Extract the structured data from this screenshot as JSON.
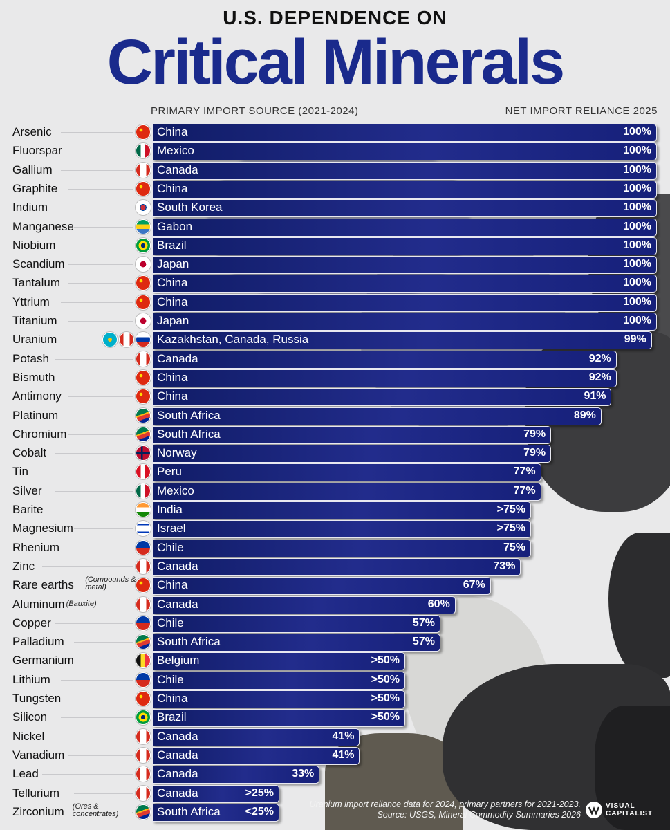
{
  "header": {
    "supertitle": "U.S. DEPENDENCE ON",
    "title": "Critical Minerals",
    "left_column": "PRIMARY IMPORT SOURCE (2021-2024)",
    "right_column": "NET IMPORT RELIANCE 2025"
  },
  "footnote": {
    "line1": "Uranium import reliance data for 2024, primary partners for 2021-2023.",
    "line2": "Source: USGS, Mineral Commodity Summaries 2026"
  },
  "brand": {
    "line1": "VISUAL",
    "line2": "CAPITALIST",
    "icon": "vc-logo-icon"
  },
  "colors": {
    "bar": "#1c2680",
    "title": "#1a2a8c",
    "background": "#e9e9ea"
  },
  "chart_data": {
    "type": "bar",
    "orientation": "horizontal",
    "title": "Critical Minerals",
    "xlim": [
      0,
      100
    ],
    "rows": [
      {
        "mineral": "Arsenic",
        "note": "",
        "source": "China",
        "flags": [
          "China"
        ],
        "value": 100,
        "label": "100%"
      },
      {
        "mineral": "Fluorspar",
        "note": "",
        "source": "Mexico",
        "flags": [
          "Mexico"
        ],
        "value": 100,
        "label": "100%"
      },
      {
        "mineral": "Gallium",
        "note": "",
        "source": "Canada",
        "flags": [
          "Canada"
        ],
        "value": 100,
        "label": "100%"
      },
      {
        "mineral": "Graphite",
        "note": "",
        "source": "China",
        "flags": [
          "China"
        ],
        "value": 100,
        "label": "100%"
      },
      {
        "mineral": "Indium",
        "note": "",
        "source": "South Korea",
        "flags": [
          "South Korea"
        ],
        "value": 100,
        "label": "100%"
      },
      {
        "mineral": "Manganese",
        "note": "",
        "source": "Gabon",
        "flags": [
          "Gabon"
        ],
        "value": 100,
        "label": "100%"
      },
      {
        "mineral": "Niobium",
        "note": "",
        "source": "Brazil",
        "flags": [
          "Brazil"
        ],
        "value": 100,
        "label": "100%"
      },
      {
        "mineral": "Scandium",
        "note": "",
        "source": "Japan",
        "flags": [
          "Japan"
        ],
        "value": 100,
        "label": "100%"
      },
      {
        "mineral": "Tantalum",
        "note": "",
        "source": "China",
        "flags": [
          "China"
        ],
        "value": 100,
        "label": "100%"
      },
      {
        "mineral": "Yttrium",
        "note": "",
        "source": "China",
        "flags": [
          "China"
        ],
        "value": 100,
        "label": "100%"
      },
      {
        "mineral": "Titanium",
        "note": "",
        "source": "Japan",
        "flags": [
          "Japan"
        ],
        "value": 100,
        "label": "100%"
      },
      {
        "mineral": "Uranium",
        "note": "",
        "source": "Kazakhstan, Canada, Russia",
        "flags": [
          "Kazakhstan",
          "Canada",
          "Russia"
        ],
        "value": 99,
        "label": "99%"
      },
      {
        "mineral": "Potash",
        "note": "",
        "source": "Canada",
        "flags": [
          "Canada"
        ],
        "value": 92,
        "label": "92%"
      },
      {
        "mineral": "Bismuth",
        "note": "",
        "source": "China",
        "flags": [
          "China"
        ],
        "value": 92,
        "label": "92%"
      },
      {
        "mineral": "Antimony",
        "note": "",
        "source": "China",
        "flags": [
          "China"
        ],
        "value": 91,
        "label": "91%"
      },
      {
        "mineral": "Platinum",
        "note": "",
        "source": "South Africa",
        "flags": [
          "South Africa"
        ],
        "value": 89,
        "label": "89%"
      },
      {
        "mineral": "Chromium",
        "note": "",
        "source": "South Africa",
        "flags": [
          "South Africa"
        ],
        "value": 79,
        "label": "79%"
      },
      {
        "mineral": "Cobalt",
        "note": "",
        "source": "Norway",
        "flags": [
          "Norway"
        ],
        "value": 79,
        "label": "79%"
      },
      {
        "mineral": "Tin",
        "note": "",
        "source": "Peru",
        "flags": [
          "Peru"
        ],
        "value": 77,
        "label": "77%"
      },
      {
        "mineral": "Silver",
        "note": "",
        "source": "Mexico",
        "flags": [
          "Mexico"
        ],
        "value": 77,
        "label": "77%"
      },
      {
        "mineral": "Barite",
        "note": "",
        "source": "India",
        "flags": [
          "India"
        ],
        "value": 75,
        "label": ">75%"
      },
      {
        "mineral": "Magnesium",
        "note": "",
        "source": "Israel",
        "flags": [
          "Israel"
        ],
        "value": 75,
        "label": ">75%"
      },
      {
        "mineral": "Rhenium",
        "note": "",
        "source": "Chile",
        "flags": [
          "Chile"
        ],
        "value": 75,
        "label": "75%"
      },
      {
        "mineral": "Zinc",
        "note": "",
        "source": "Canada",
        "flags": [
          "Canada"
        ],
        "value": 73,
        "label": "73%"
      },
      {
        "mineral": "Rare earths",
        "note": "(Compounds & metal)",
        "source": "China",
        "flags": [
          "China"
        ],
        "value": 67,
        "label": "67%"
      },
      {
        "mineral": "Aluminum",
        "note": "(Bauxite)",
        "source": "Canada",
        "flags": [
          "Canada"
        ],
        "value": 60,
        "label": "60%"
      },
      {
        "mineral": "Copper",
        "note": "",
        "source": "Chile",
        "flags": [
          "Chile"
        ],
        "value": 57,
        "label": "57%"
      },
      {
        "mineral": "Palladium",
        "note": "",
        "source": "South Africa",
        "flags": [
          "South Africa"
        ],
        "value": 57,
        "label": "57%"
      },
      {
        "mineral": "Germanium",
        "note": "",
        "source": "Belgium",
        "flags": [
          "Belgium"
        ],
        "value": 50,
        "label": ">50%"
      },
      {
        "mineral": "Lithium",
        "note": "",
        "source": "Chile",
        "flags": [
          "Chile"
        ],
        "value": 50,
        "label": ">50%"
      },
      {
        "mineral": "Tungsten",
        "note": "",
        "source": "China",
        "flags": [
          "China"
        ],
        "value": 50,
        "label": ">50%"
      },
      {
        "mineral": "Silicon",
        "note": "",
        "source": "Brazil",
        "flags": [
          "Brazil"
        ],
        "value": 50,
        "label": ">50%"
      },
      {
        "mineral": "Nickel",
        "note": "",
        "source": "Canada",
        "flags": [
          "Canada"
        ],
        "value": 41,
        "label": "41%"
      },
      {
        "mineral": "Vanadium",
        "note": "",
        "source": "Canada",
        "flags": [
          "Canada"
        ],
        "value": 41,
        "label": "41%"
      },
      {
        "mineral": "Lead",
        "note": "",
        "source": "Canada",
        "flags": [
          "Canada"
        ],
        "value": 33,
        "label": "33%"
      },
      {
        "mineral": "Tellurium",
        "note": "",
        "source": "Canada",
        "flags": [
          "Canada"
        ],
        "value": 25,
        "label": ">25%"
      },
      {
        "mineral": "Zirconium",
        "note": "(Ores & concentrates)",
        "source": "South Africa",
        "flags": [
          "South Africa"
        ],
        "value": 25,
        "label": "<25%"
      }
    ]
  }
}
